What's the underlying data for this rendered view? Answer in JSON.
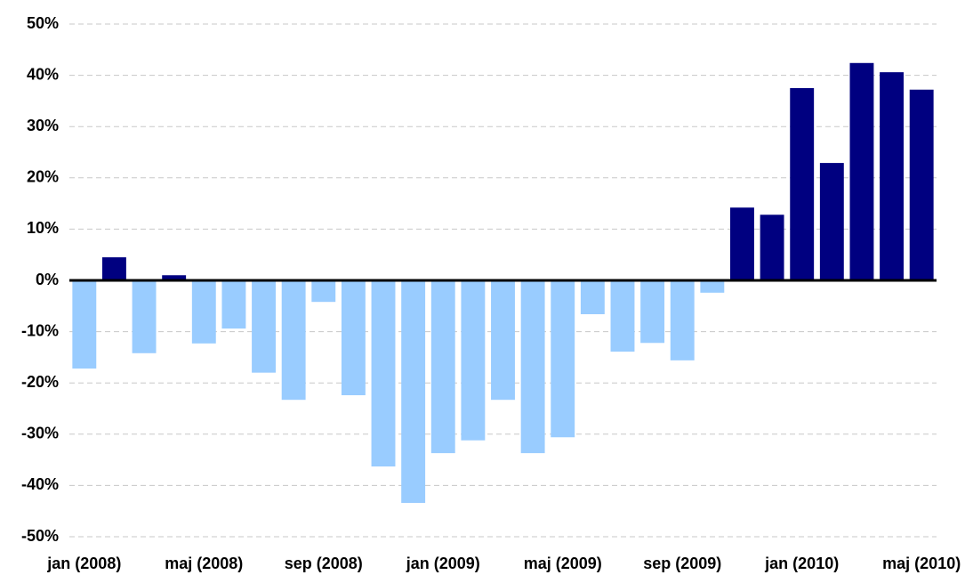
{
  "chart_data": {
    "type": "bar",
    "categories": [
      "jan (2008)",
      null,
      null,
      null,
      "maj (2008)",
      null,
      null,
      null,
      "sep (2008)",
      null,
      null,
      null,
      "jan (2009)",
      null,
      null,
      null,
      "maj (2009)",
      null,
      null,
      null,
      "sep (2009)",
      null,
      null,
      null,
      "jan (2010)",
      null,
      null,
      null,
      "maj (2010)"
    ],
    "values": [
      -17.2,
      4.5,
      -14.2,
      1.0,
      -12.3,
      -9.4,
      -18.0,
      -23.3,
      -4.2,
      -22.4,
      -36.3,
      -43.4,
      -33.7,
      -31.2,
      -23.3,
      -33.7,
      -30.6,
      -6.6,
      -13.9,
      -12.2,
      -15.6,
      -2.4,
      14.2,
      12.8,
      37.5,
      22.9,
      42.4,
      40.6,
      37.2
    ],
    "positive_color": "#000080",
    "negative_color": "#99ccff",
    "ylim": [
      -50,
      50
    ],
    "yticks": [
      {
        "value": -50,
        "label": "-50%"
      },
      {
        "value": -40,
        "label": "-40%"
      },
      {
        "value": -30,
        "label": "-30%"
      },
      {
        "value": -20,
        "label": "-20%"
      },
      {
        "value": -10,
        "label": "-10%"
      },
      {
        "value": 0,
        "label": "0%"
      },
      {
        "value": 10,
        "label": "10%"
      },
      {
        "value": 20,
        "label": "20%"
      },
      {
        "value": 30,
        "label": "30%"
      },
      {
        "value": 40,
        "label": "40%"
      },
      {
        "value": 50,
        "label": "50%"
      }
    ],
    "grid": true
  }
}
